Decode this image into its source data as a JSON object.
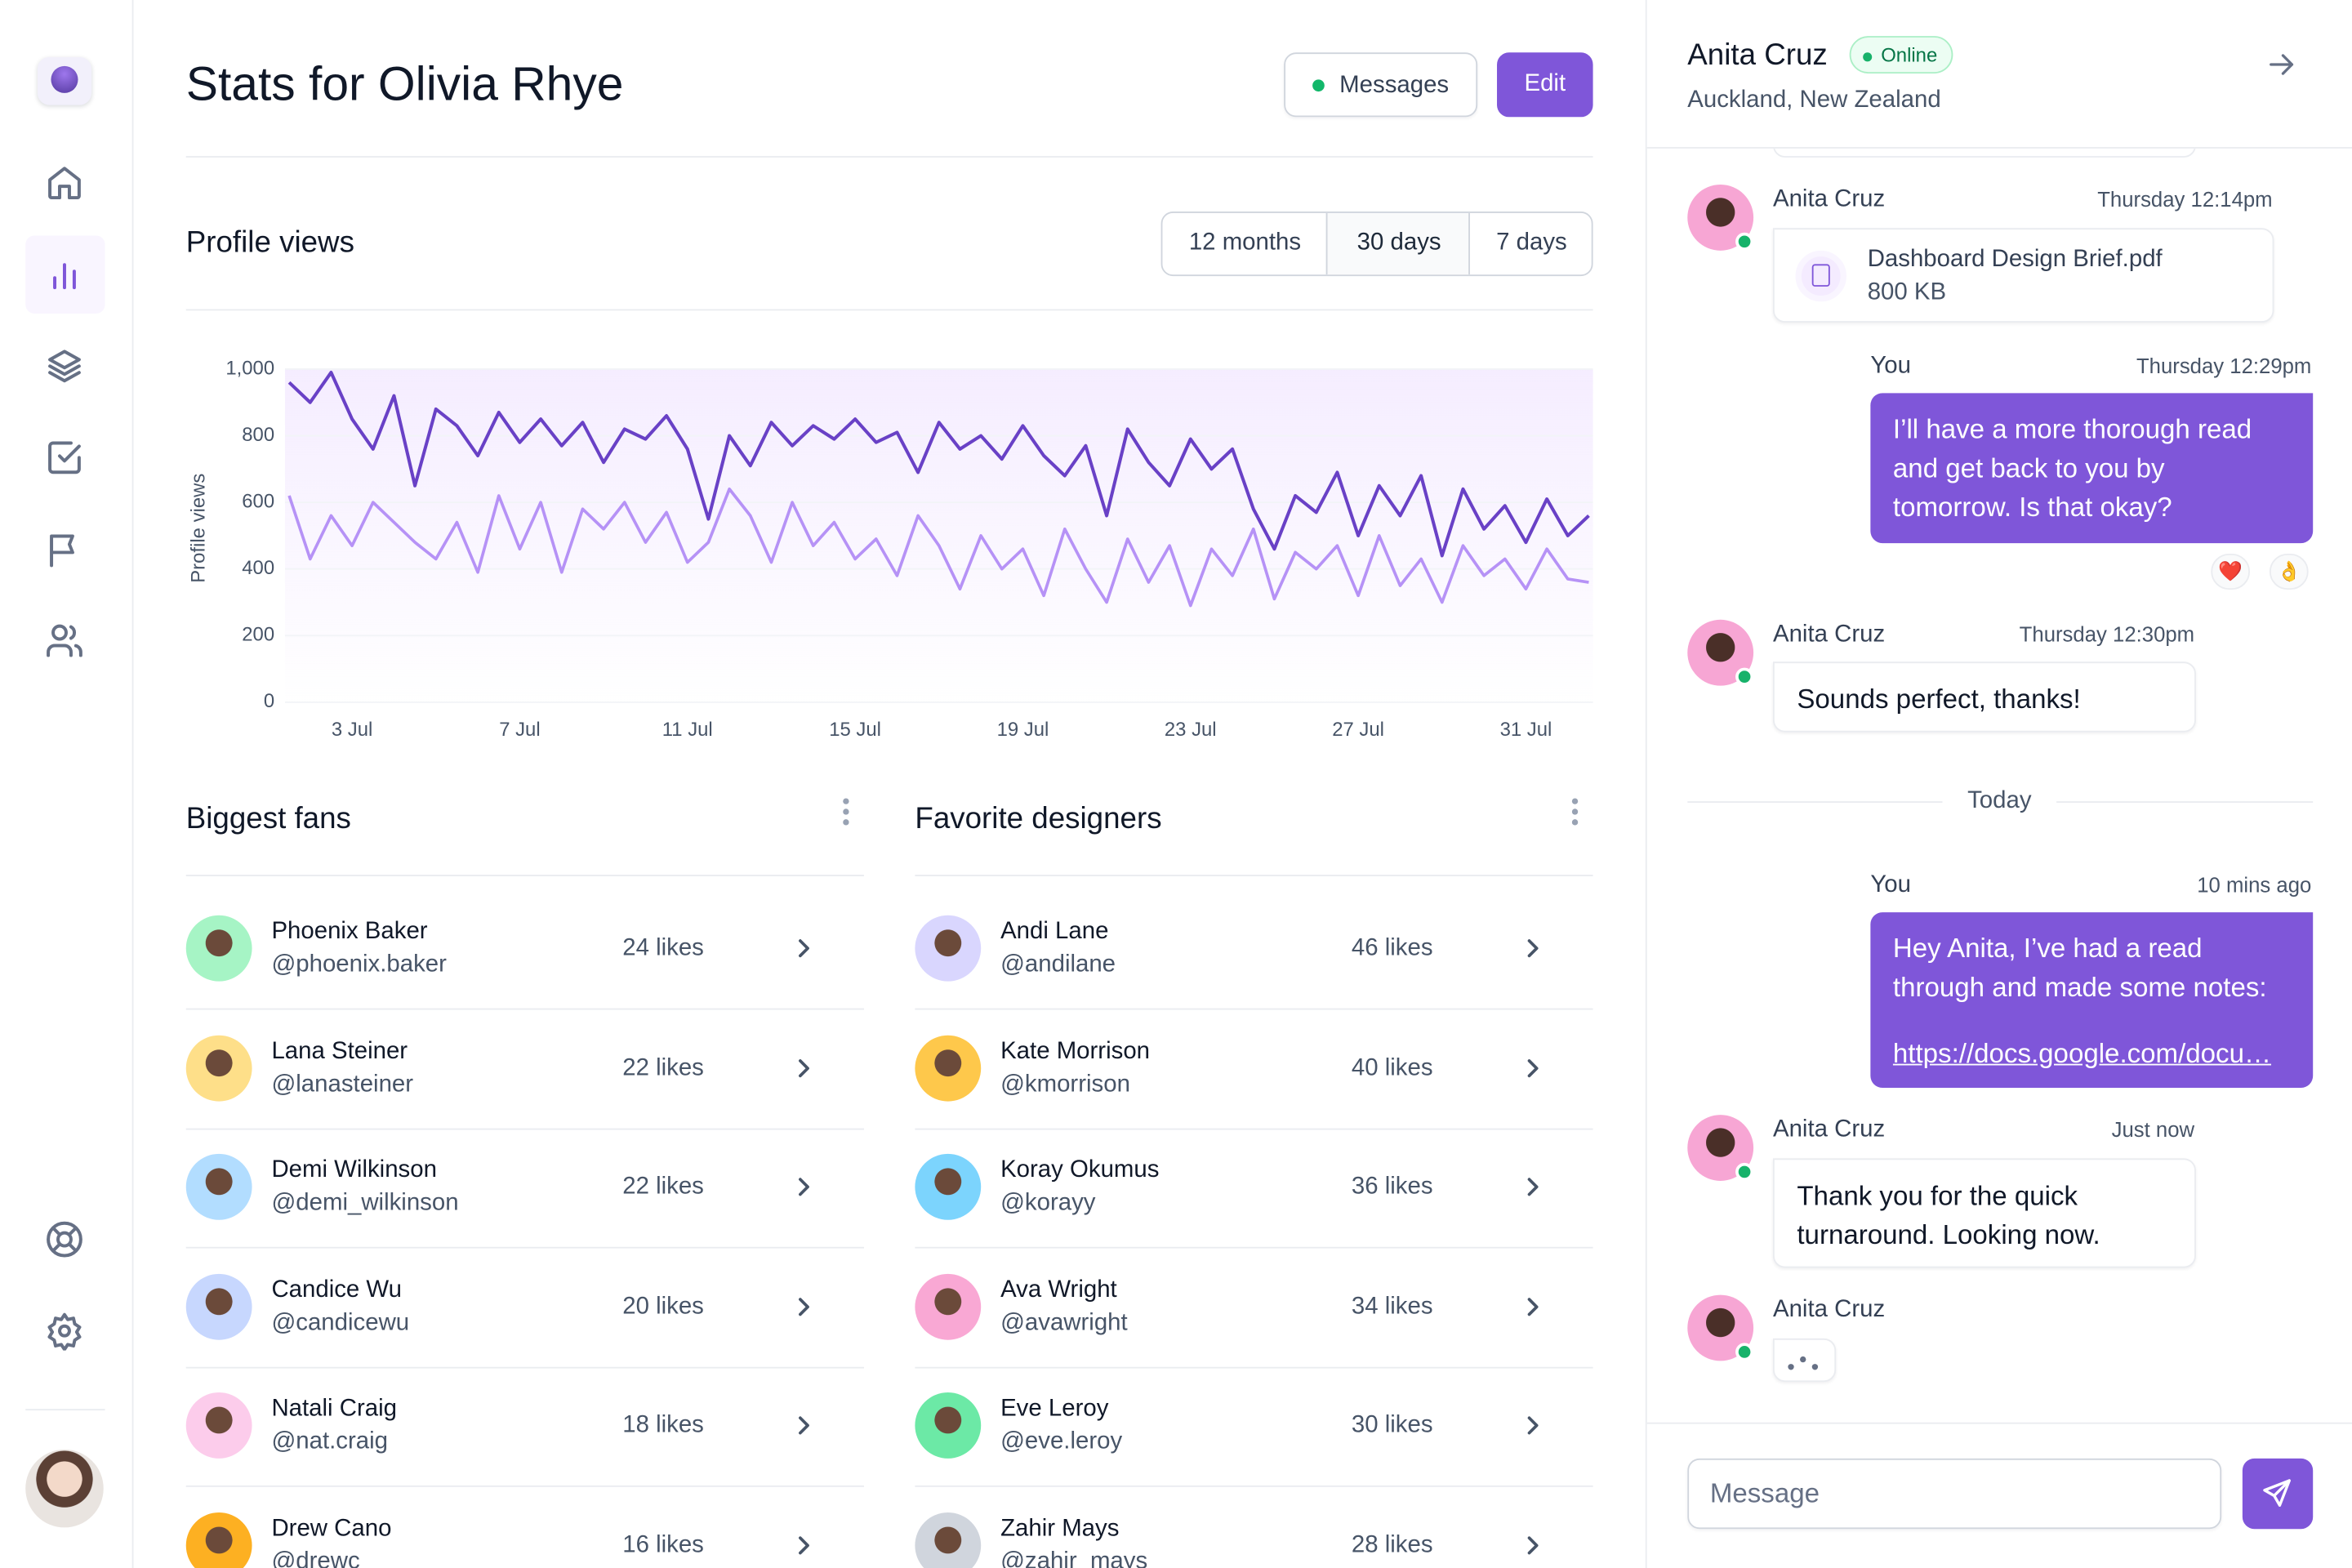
{
  "header": {
    "title": "Stats for Olivia Rhye",
    "buttons": [
      "Messages",
      "Edit"
    ]
  },
  "profile_views": {
    "title": "Profile views",
    "tabs": [
      "12 months",
      "30 days",
      "7 days"
    ]
  },
  "chart_data": {
    "type": "line",
    "y_label": "Profile views",
    "x": [
      1.5,
      2,
      2.5,
      3,
      3.5,
      4,
      4.5,
      5,
      5.5,
      6,
      6.5,
      7,
      7.5,
      8,
      8.5,
      9,
      9.5,
      10,
      10.5,
      11,
      11.5,
      12,
      12.5,
      13,
      13.5,
      14,
      14.5,
      15,
      15.5,
      16,
      16.5,
      17,
      17.5,
      18,
      18.5,
      19,
      19.5,
      20,
      20.5,
      21,
      21.5,
      22,
      22.5,
      23,
      23.5,
      24,
      24.5,
      25,
      25.5,
      26,
      26.5,
      27,
      27.5,
      28,
      28.5,
      29,
      29.5,
      30,
      30.5,
      31,
      31.5,
      32,
      32.5
    ],
    "xlim": [
      1.4,
      32.6
    ],
    "xticks": [
      {
        "value": 3,
        "label": "3 Jul"
      },
      {
        "value": 7,
        "label": "7 Jul"
      },
      {
        "value": 11,
        "label": "11 Jul"
      },
      {
        "value": 15,
        "label": "15 Jul"
      },
      {
        "value": 19,
        "label": "19 Jul"
      },
      {
        "value": 23,
        "label": "23 Jul"
      },
      {
        "value": 27,
        "label": "27 Jul"
      },
      {
        "value": 31,
        "label": "31 Jul"
      }
    ],
    "ylim": [
      0,
      1000
    ],
    "yticks": [
      0,
      200,
      400,
      600,
      800,
      {
        "value": 1000,
        "label": "1,000"
      }
    ],
    "grid": true,
    "series": [
      {
        "color": "#6941c6",
        "values": [
          960,
          900,
          990,
          850,
          760,
          920,
          650,
          880,
          830,
          740,
          870,
          780,
          850,
          770,
          840,
          720,
          820,
          790,
          860,
          760,
          550,
          800,
          710,
          840,
          770,
          830,
          790,
          850,
          780,
          810,
          690,
          840,
          760,
          800,
          730,
          830,
          740,
          680,
          770,
          560,
          820,
          720,
          650,
          790,
          700,
          760,
          580,
          460,
          620,
          570,
          690,
          500,
          650,
          560,
          680,
          440,
          640,
          520,
          590,
          480,
          610,
          500,
          560
        ]
      },
      {
        "color": "#b692f6",
        "values": [
          620,
          430,
          560,
          470,
          600,
          540,
          480,
          430,
          540,
          390,
          620,
          460,
          600,
          390,
          580,
          520,
          600,
          480,
          570,
          420,
          480,
          640,
          560,
          420,
          600,
          470,
          540,
          430,
          490,
          380,
          560,
          470,
          340,
          500,
          400,
          460,
          320,
          520,
          400,
          300,
          490,
          360,
          470,
          290,
          460,
          380,
          520,
          310,
          450,
          400,
          470,
          320,
          500,
          350,
          430,
          300,
          470,
          380,
          430,
          340,
          460,
          370,
          360
        ]
      }
    ]
  },
  "fans": {
    "title": "Biggest fans",
    "rows": [
      {
        "name": "Phoenix Baker",
        "handle": "@phoenix.baker",
        "likes": "24 likes"
      },
      {
        "name": "Lana Steiner",
        "handle": "@lanasteiner",
        "likes": "22 likes"
      },
      {
        "name": "Demi Wilkinson",
        "handle": "@demi_wilkinson",
        "likes": "22 likes"
      },
      {
        "name": "Candice Wu",
        "handle": "@candicewu",
        "likes": "20 likes"
      },
      {
        "name": "Natali Craig",
        "handle": "@nat.craig",
        "likes": "18 likes"
      },
      {
        "name": "Drew Cano",
        "handle": "@drewc",
        "likes": "16 likes"
      }
    ]
  },
  "designers": {
    "title": "Favorite designers",
    "rows": [
      {
        "name": "Andi Lane",
        "handle": "@andilane",
        "likes": "46 likes"
      },
      {
        "name": "Kate Morrison",
        "handle": "@kmorrison",
        "likes": "40 likes"
      },
      {
        "name": "Koray Okumus",
        "handle": "@korayy",
        "likes": "36 likes"
      },
      {
        "name": "Ava Wright",
        "handle": "@avawright",
        "likes": "34 likes"
      },
      {
        "name": "Eve Leroy",
        "handle": "@eve.leroy",
        "likes": "30 likes"
      },
      {
        "name": "Zahir Mays",
        "handle": "@zahir_mays",
        "likes": "28 likes"
      }
    ]
  },
  "chat": {
    "name": "Anita Cruz",
    "status": "Online",
    "location": "Auckland, New Zealand",
    "divider": "Today",
    "input_placeholder": "Message",
    "messages": [
      {
        "sender": "Anita Cruz",
        "time": "Thursday 12:14pm",
        "file": {
          "name": "Dashboard Design Brief.pdf",
          "size": "800 KB"
        }
      },
      {
        "sender": "You",
        "time": "Thursday 12:29pm",
        "text": "I’ll have a more thorough read and get back to you by tomorrow. Is that okay?",
        "reactions": [
          "❤️",
          "👌"
        ]
      },
      {
        "sender": "Anita Cruz",
        "time": "Thursday 12:30pm",
        "text": "Sounds perfect, thanks!"
      },
      {
        "sender": "You",
        "time": "10 mins ago",
        "text": "Hey Anita, I’ve had a read through and made some notes:",
        "link": "https://docs.google.com/docu…"
      },
      {
        "sender": "Anita Cruz",
        "time": "Just now",
        "text": "Thank you for the quick turnaround. Looking now."
      },
      {
        "sender": "Anita Cruz"
      }
    ]
  }
}
